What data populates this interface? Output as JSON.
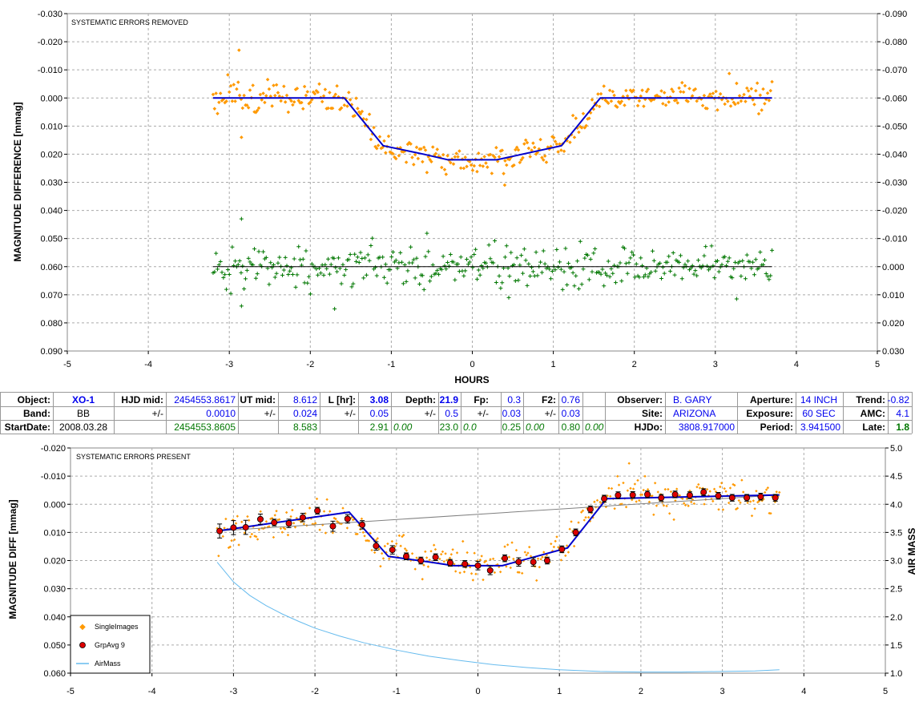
{
  "chart_data": [
    {
      "type": "scatter",
      "note": "SYSTEMATIC ERRORS REMOVED",
      "xlabel": "HOURS",
      "ylabel": "MAGNITUDE DIFFERENCE [mmag]",
      "xlim": [
        -5,
        5
      ],
      "ylim": [
        -0.03,
        0.09
      ],
      "y_inverted": true,
      "x_ticks": [
        "-5",
        "-4",
        "-3",
        "-2",
        "-1",
        "0",
        "1",
        "2",
        "3",
        "4",
        "5"
      ],
      "y_ticks": [
        "-0.030",
        "-0.020",
        "-0.010",
        "0.000",
        "0.010",
        "0.020",
        "0.030",
        "0.040",
        "0.050",
        "0.060",
        "0.070",
        "0.080",
        "0.090"
      ],
      "y2_ticks": [
        "-0.090",
        "-0.080",
        "-0.070",
        "-0.060",
        "-0.050",
        "-0.040",
        "-0.030",
        "-0.020",
        "-0.010",
        "0.000",
        "0.010",
        "0.020",
        "0.030"
      ],
      "colors": {
        "target": "#ff9900",
        "model": "#0000cc",
        "check": "#007700",
        "zero_line": "#000000"
      },
      "model": {
        "x": [
          -3.2,
          -1.58,
          -1.1,
          -0.6,
          -0.3,
          0.3,
          1.1,
          1.58,
          3.7
        ],
        "y": [
          0.0,
          0.0,
          0.017,
          0.02,
          0.022,
          0.022,
          0.017,
          0.0,
          0.0
        ]
      },
      "check_line": {
        "x": [
          -3.2,
          3.7
        ],
        "y": [
          0.06,
          0.06
        ]
      },
      "scatter_target": {
        "x_range": [
          -3.2,
          3.7
        ],
        "count": 380,
        "scatter_sd": 0.0025,
        "outliers": [
          {
            "x": -2.88,
            "y": -0.017
          },
          {
            "x": -2.85,
            "y": 0.014
          },
          {
            "x": 0.4,
            "y": 0.031
          }
        ]
      },
      "scatter_check": {
        "x_range": [
          -3.2,
          3.7
        ],
        "count": 380,
        "center": 0.06,
        "scatter_sd": 0.0035,
        "outliers": [
          {
            "x": -2.85,
            "y": 0.043
          },
          {
            "x": -2.85,
            "y": 0.074
          },
          {
            "x": -1.7,
            "y": 0.075
          },
          {
            "x": 0.45,
            "y": 0.071
          }
        ]
      }
    },
    {
      "type": "scatter",
      "note": "SYSTEMATIC ERRORS PRESENT",
      "ylabel": "MAGNITUDE DIFF [mmag]",
      "y2label": "AIR MASS",
      "xlim": [
        -5,
        5
      ],
      "ylim": [
        -0.02,
        0.06
      ],
      "y_inverted": true,
      "y2lim": [
        1.0,
        5.0
      ],
      "x_ticks": [
        "-5",
        "-4",
        "-3",
        "-2",
        "-1",
        "0",
        "1",
        "2",
        "3",
        "4",
        "5"
      ],
      "y_ticks": [
        "-0.020",
        "-0.010",
        "0.000",
        "0.010",
        "0.020",
        "0.030",
        "0.040",
        "0.050",
        "0.060"
      ],
      "y2_ticks": [
        "5.0",
        "4.5",
        "4.0",
        "3.5",
        "3.0",
        "2.5",
        "2.0",
        "1.5",
        "1.0"
      ],
      "legend": [
        "SingleImages",
        "GrpAvg 9",
        "AirMass"
      ],
      "legend_position": "bottom-left",
      "colors": {
        "single": "#ff9900",
        "grp": "#dd0000",
        "model": "#0000cc",
        "trend": "#808080",
        "airmass": "#66bbee"
      },
      "grp_avg": {
        "x": [
          -3.17,
          -3.0,
          -2.85,
          -2.67,
          -2.5,
          -2.32,
          -2.15,
          -1.97,
          -1.78,
          -1.6,
          -1.42,
          -1.25,
          -1.05,
          -0.88,
          -0.7,
          -0.52,
          -0.34,
          -0.16,
          0.0,
          0.15,
          0.33,
          0.5,
          0.68,
          0.85,
          1.03,
          1.2,
          1.38,
          1.55,
          1.72,
          1.9,
          2.08,
          2.25,
          2.42,
          2.6,
          2.77,
          2.95,
          3.12,
          3.3,
          3.47,
          3.65
        ],
        "y": [
          0.0095,
          0.0083,
          0.0082,
          0.0053,
          0.0065,
          0.0068,
          0.0047,
          0.0023,
          0.0078,
          0.0052,
          0.0073,
          0.0148,
          0.0162,
          0.0185,
          0.02,
          0.0188,
          0.0208,
          0.0212,
          0.0218,
          0.0235,
          0.0192,
          0.0205,
          0.0205,
          0.02,
          0.016,
          0.01,
          0.0018,
          -0.002,
          -0.0032,
          -0.0033,
          -0.0035,
          -0.0023,
          -0.0035,
          -0.0032,
          -0.0043,
          -0.003,
          -0.0023,
          -0.0023,
          -0.0027,
          -0.0023
        ],
        "err": [
          0.0025,
          0.0025,
          0.0025,
          0.0018,
          0.0012,
          0.0015,
          0.0015,
          0.0012,
          0.0018,
          0.0015,
          0.0015,
          0.0015,
          0.0015,
          0.0012,
          0.0012,
          0.0012,
          0.0012,
          0.0012,
          0.0015,
          0.0015,
          0.0012,
          0.0015,
          0.0015,
          0.0012,
          0.0012,
          0.0012,
          0.0012,
          0.0012,
          0.0012,
          0.0012,
          0.0012,
          0.0012,
          0.0012,
          0.0012,
          0.0012,
          0.0012,
          0.0012,
          0.0012,
          0.0012,
          0.0012
        ]
      },
      "model": {
        "x": [
          -3.2,
          -1.58,
          -1.1,
          -0.6,
          -0.3,
          0.3,
          1.1,
          1.58,
          3.7
        ],
        "y": [
          0.0095,
          0.0028,
          0.0185,
          0.0205,
          0.0218,
          0.0218,
          0.0155,
          -0.002,
          -0.0033
        ]
      },
      "trend": {
        "x": [
          -3.2,
          3.7
        ],
        "y": [
          0.0095,
          -0.0033
        ]
      },
      "airmass": {
        "x": [
          -3.2,
          -3.0,
          -2.8,
          -2.6,
          -2.4,
          -2.2,
          -2.0,
          -1.7,
          -1.4,
          -1.0,
          -0.6,
          -0.2,
          0.2,
          0.6,
          1.0,
          1.5,
          2.0,
          2.5,
          3.0,
          3.4,
          3.7
        ],
        "y": [
          2.97,
          2.62,
          2.38,
          2.2,
          2.05,
          1.92,
          1.8,
          1.66,
          1.54,
          1.41,
          1.3,
          1.22,
          1.15,
          1.1,
          1.06,
          1.03,
          1.02,
          1.02,
          1.03,
          1.04,
          1.06
        ]
      },
      "scatter_single": {
        "x_range": [
          -3.2,
          3.7
        ],
        "count": 390,
        "scatter_sd": 0.0028
      }
    }
  ],
  "info_table": {
    "row1": {
      "object_label": "Object:",
      "object": "XO-1",
      "hjd_mid_label": "HJD mid:",
      "hjd_mid": "2454553.8617",
      "ut_mid_label": "UT mid:",
      "ut_mid": "8.612",
      "l_hr_label": "L [hr]:",
      "l_hr": "3.08",
      "depth_label": "Depth:",
      "depth": "21.9",
      "fp_label": "Fp:",
      "fp": "0.3",
      "f2_label": "F2:",
      "f2": "0.76",
      "observer_label": "Observer:",
      "observer": "B. GARY",
      "aperture_label": "Aperture:",
      "aperture": "14 INCH",
      "trend_label": "Trend:",
      "trend": "-0.82"
    },
    "row2": {
      "band_label": "Band:",
      "band": "BB",
      "pm1": "+/-",
      "hjd_err": "0.0010",
      "pm2": "+/-",
      "ut_err": "0.024",
      "pm3": "+/-",
      "l_err": "0.05",
      "pm4": "+/-",
      "depth_err": "0.5",
      "pm5": "+/-",
      "fp_err": "0.03",
      "pm6": "+/-",
      "f2_err": "0.03",
      "site_label": "Site:",
      "site": "ARIZONA",
      "exposure_label": "Exposure:",
      "exposure": "60 SEC",
      "amc_label": "AMC:",
      "amc": "4.1"
    },
    "row3": {
      "startdate_label": "StartDate:",
      "startdate": "2008.03.28",
      "hjd_start": "2454553.8605",
      "ut_start": "8.583",
      "l_start": "2.91",
      "l_start2": "0.00",
      "depth_start": "23.0",
      "depth_start2": "0.0",
      "fp_start": "0.25",
      "fp_start2": "0.00",
      "f2_start": "0.80",
      "f2_start2": "0.00",
      "hjdo_label": "HJDo:",
      "hjdo": "3808.917000",
      "period_label": "Period:",
      "period": "3.941500",
      "late_label": "Late:",
      "late": "1.8"
    }
  }
}
